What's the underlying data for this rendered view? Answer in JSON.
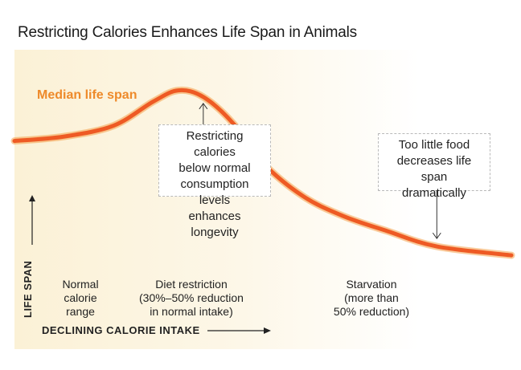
{
  "title": "Restricting Calories Enhances Life Span in Animals",
  "chart_data": {
    "type": "line",
    "title": "Restricting Calories Enhances Life Span in Animals",
    "xlabel": "DECLINING CALORIE INTAKE",
    "ylabel": "LIFE SPAN",
    "grid": false,
    "series": [
      {
        "name": "Median life span",
        "color": "#ee5a24",
        "x": [
          0,
          10,
          20,
          28,
          33,
          38,
          44,
          50,
          58,
          66,
          75,
          85,
          100
        ],
        "y": [
          60,
          62,
          67,
          78,
          83,
          80,
          68,
          50,
          35,
          26,
          19,
          12,
          8
        ]
      }
    ],
    "ranges": [
      {
        "label": "Normal\ncalorie\nrange"
      },
      {
        "label": "Diet restriction\n(30%–50% reduction\nin normal intake)"
      },
      {
        "label": "Starvation\n(more than\n50% reduction)"
      }
    ],
    "annotations": [
      {
        "text": "Restricting calories\nbelow normal\nconsumption levels\nenhances longevity",
        "points_to_x": 38
      },
      {
        "text": "Too little food\ndecreases life span\ndramatically",
        "points_to_x": 85
      }
    ],
    "xlim": [
      0,
      100
    ],
    "ylim": [
      0,
      100
    ]
  }
}
